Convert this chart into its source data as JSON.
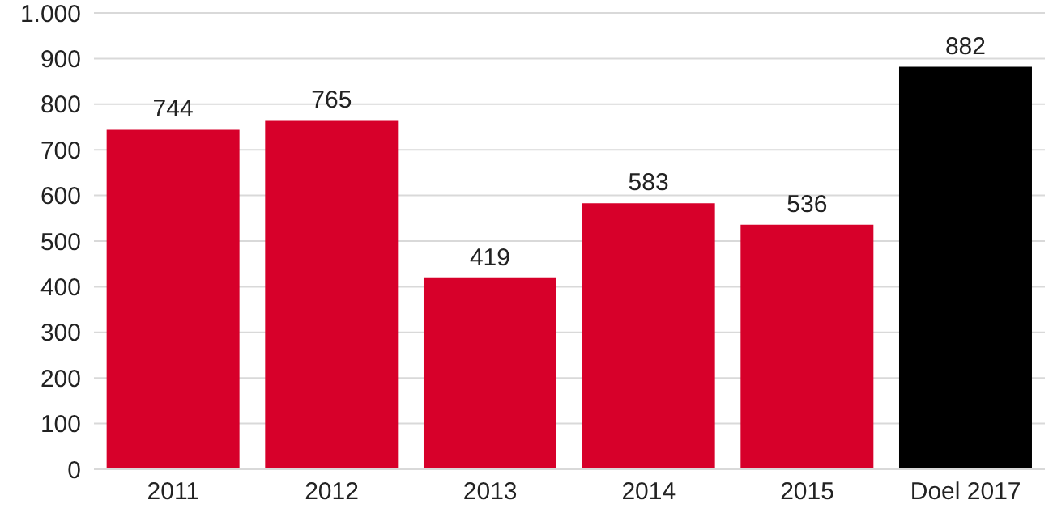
{
  "chart_data": {
    "type": "bar",
    "categories": [
      "2011",
      "2012",
      "2013",
      "2014",
      "2015",
      "Doel 2017"
    ],
    "values": [
      744,
      765,
      419,
      583,
      536,
      882
    ],
    "colors": [
      "#d7002a",
      "#d7002a",
      "#d7002a",
      "#d7002a",
      "#d7002a",
      "#000000"
    ],
    "ylim": [
      0,
      1000
    ],
    "yticks": [
      0,
      100,
      200,
      300,
      400,
      500,
      600,
      700,
      800,
      900,
      {
        "value": 1000,
        "label": "1.000"
      }
    ],
    "grid": "y",
    "data_labels": true
  }
}
